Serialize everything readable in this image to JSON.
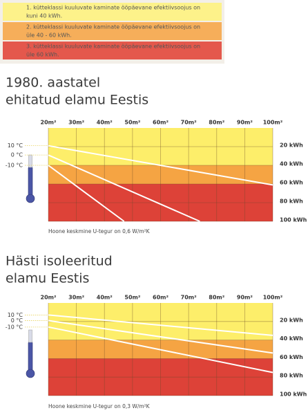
{
  "legend": [
    {
      "color": "#fdf28a",
      "lines": [
        "1. kütteklassi kuuluvate kaminate ööpäevane efektiivsoojus on",
        "kuni 40 kWh."
      ]
    },
    {
      "color": "#f6ae5a",
      "lines": [
        "2. kütteklassi kuuluvate kaminate ööpäevane efektiivsoojus on",
        "üle 40 - 60 kWh."
      ]
    },
    {
      "color": "#e4584c",
      "lines": [
        "3. kütteklassi kuuluvate kaminate ööpäevane efektiivsoojus on",
        "üle 60 kWh."
      ]
    }
  ],
  "chart_data": [
    {
      "type": "line",
      "title_lines": [
        "1980. aastatel",
        "ehitatud elamu Eestis"
      ],
      "note": "Hoone keskmine U-tegur on 0,6 W/m²K",
      "xlim": [
        20,
        100
      ],
      "xticks": [
        {
          "value": 20,
          "label": "20m²"
        },
        {
          "value": 30,
          "label": "30m²"
        },
        {
          "value": 40,
          "label": "40m²"
        },
        {
          "value": 50,
          "label": "50m²"
        },
        {
          "value": 60,
          "label": "60m²"
        },
        {
          "value": 70,
          "label": "70m²"
        },
        {
          "value": 80,
          "label": "80m²"
        },
        {
          "value": 90,
          "label": "90m²"
        },
        {
          "value": 100,
          "label": "100m²"
        }
      ],
      "ylim": [
        0,
        100
      ],
      "yticks": [
        {
          "value": 20,
          "label": "20 kWh"
        },
        {
          "value": 40,
          "label": "40 kWh"
        },
        {
          "value": 60,
          "label": "60 kWh"
        },
        {
          "value": 80,
          "label": "80 kWh"
        },
        {
          "value": 100,
          "label": "100 kWh"
        }
      ],
      "bands": [
        {
          "range": [
            0,
            40
          ],
          "color": "#fdee6a"
        },
        {
          "range": [
            40,
            60
          ],
          "color": "#f5a443"
        },
        {
          "range": [
            60,
            100
          ],
          "color": "#dd4238"
        }
      ],
      "grid": true,
      "series": [
        {
          "name": "10 °C",
          "color": "#ffffff",
          "x": [
            20,
            100
          ],
          "values": [
            19,
            61
          ]
        },
        {
          "name": "0 °C",
          "color": "#ffffff",
          "x": [
            20,
            74
          ],
          "values": [
            29,
            100
          ]
        },
        {
          "name": "-10 °C",
          "color": "#ffffff",
          "x": [
            20,
            47
          ],
          "values": [
            40,
            100
          ]
        }
      ]
    },
    {
      "type": "line",
      "title_lines": [
        "Hästi isoleeritud",
        "elamu Eestis"
      ],
      "note": "Hoone keskmine U-tegur on 0,3 W/m²K",
      "xlim": [
        20,
        100
      ],
      "xticks": [
        {
          "value": 20,
          "label": "20m²"
        },
        {
          "value": 30,
          "label": "30m²"
        },
        {
          "value": 40,
          "label": "40m²"
        },
        {
          "value": 50,
          "label": "50m²"
        },
        {
          "value": 60,
          "label": "60m²"
        },
        {
          "value": 70,
          "label": "70m²"
        },
        {
          "value": 80,
          "label": "80m²"
        },
        {
          "value": 90,
          "label": "90m²"
        },
        {
          "value": 100,
          "label": "100m²"
        }
      ],
      "ylim": [
        0,
        100
      ],
      "yticks": [
        {
          "value": 20,
          "label": "20 kWh"
        },
        {
          "value": 40,
          "label": "40 kWh"
        },
        {
          "value": 60,
          "label": "60 kWh"
        },
        {
          "value": 80,
          "label": "80 kWh"
        },
        {
          "value": 100,
          "label": "100 kWh"
        }
      ],
      "bands": [
        {
          "range": [
            0,
            40
          ],
          "color": "#fdee6a"
        },
        {
          "range": [
            40,
            60
          ],
          "color": "#f5a443"
        },
        {
          "range": [
            60,
            100
          ],
          "color": "#dd4238"
        }
      ],
      "grid": true,
      "series": [
        {
          "name": "10 °C",
          "color": "#ffffff",
          "x": [
            20,
            100
          ],
          "values": [
            13,
            35
          ]
        },
        {
          "name": "0 °C",
          "color": "#ffffff",
          "x": [
            20,
            100
          ],
          "values": [
            19,
            54
          ]
        },
        {
          "name": "-10 °C",
          "color": "#ffffff",
          "x": [
            20,
            100
          ],
          "values": [
            26,
            75
          ]
        }
      ]
    }
  ]
}
